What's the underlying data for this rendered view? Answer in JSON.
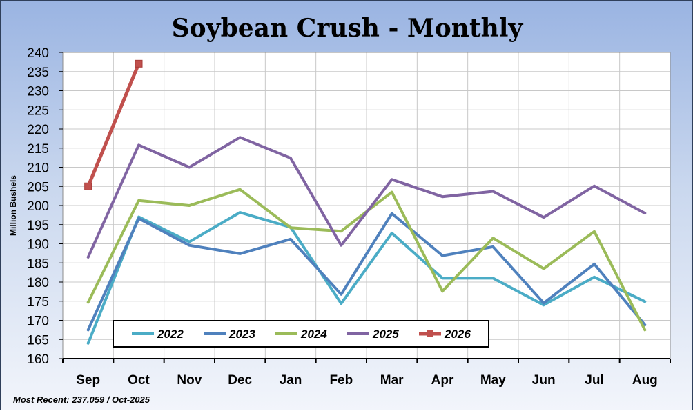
{
  "chart_data": {
    "type": "line",
    "title": "Soybean Crush - Monthly",
    "ylabel": "Million Bushels",
    "xlabel": "",
    "categories": [
      "Sep",
      "Oct",
      "Nov",
      "Dec",
      "Jan",
      "Feb",
      "Mar",
      "Apr",
      "May",
      "Jun",
      "Jul",
      "Aug"
    ],
    "ylim": [
      160,
      240
    ],
    "yticks": [
      160,
      165,
      170,
      175,
      180,
      185,
      190,
      195,
      200,
      205,
      210,
      215,
      220,
      225,
      230,
      235,
      240
    ],
    "grid": true,
    "legend_position": "bottom-left",
    "series": [
      {
        "name": "2022",
        "color": "#4bacc6",
        "marker": false,
        "values": [
          164,
          197,
          190.5,
          198.2,
          194.3,
          174.4,
          192.8,
          181,
          181,
          174,
          181.3,
          174.9
        ]
      },
      {
        "name": "2023",
        "color": "#4f81bd",
        "marker": false,
        "values": [
          167.5,
          196.6,
          189.6,
          187.4,
          191.2,
          176.8,
          197.9,
          186.9,
          189.2,
          174.5,
          184.7,
          168.8
        ]
      },
      {
        "name": "2024",
        "color": "#9bbb59",
        "marker": false,
        "values": [
          174.7,
          201.3,
          200,
          204.2,
          194.2,
          193.3,
          203.5,
          177.6,
          191.5,
          183.5,
          193.2,
          167.5
        ]
      },
      {
        "name": "2025",
        "color": "#8064a2",
        "marker": false,
        "values": [
          186.5,
          215.8,
          210,
          217.8,
          212.4,
          189.6,
          206.8,
          202.3,
          203.7,
          196.9,
          205.1,
          198
        ]
      },
      {
        "name": "2026",
        "color": "#c0504d",
        "marker": true,
        "values": [
          205,
          237.059,
          null,
          null,
          null,
          null,
          null,
          null,
          null,
          null,
          null,
          null
        ]
      }
    ]
  },
  "footnote": "Most Recent: 237.059  / Oct-2025"
}
